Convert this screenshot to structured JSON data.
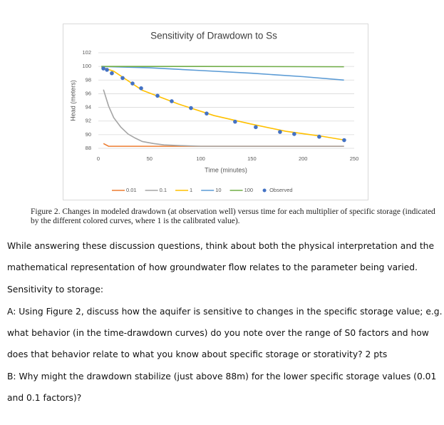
{
  "chart_data": {
    "type": "line",
    "title": "Sensitivity of Drawdown to Ss",
    "x_label": "Time (minutes)",
    "y_label": "Head (meters)",
    "xlim": [
      0,
      250
    ],
    "xticks": [
      0,
      50,
      100,
      150,
      200,
      250
    ],
    "ylim": [
      88,
      102
    ],
    "yticks": [
      88,
      90,
      92,
      94,
      96,
      98,
      100,
      102
    ],
    "grid": true,
    "series": [
      {
        "name": "0.01",
        "color": "#ed7d31",
        "x": [
          5,
          10,
          20,
          40,
          100,
          240
        ],
        "values": [
          88.7,
          88.3,
          88.3,
          88.3,
          88.3,
          88.3
        ]
      },
      {
        "name": "0.1",
        "color": "#a5a5a5",
        "x": [
          5,
          10,
          15,
          22,
          29,
          36,
          43,
          54,
          64,
          80,
          100,
          240
        ],
        "values": [
          96.6,
          94.2,
          92.5,
          91.1,
          90.1,
          89.5,
          89.0,
          88.7,
          88.5,
          88.4,
          88.3,
          88.3
        ]
      },
      {
        "name": "1",
        "color": "#ffc000",
        "x": [
          3,
          15,
          43,
          78,
          113,
          148,
          183,
          217,
          241
        ],
        "values": [
          99.9,
          99.3,
          96.5,
          94.5,
          92.8,
          91.6,
          90.5,
          89.8,
          89.2
        ]
      },
      {
        "name": "10",
        "color": "#5b9bd5",
        "x": [
          3,
          50,
          100,
          150,
          200,
          240
        ],
        "values": [
          100,
          99.8,
          99.4,
          99.0,
          98.5,
          98.0
        ]
      },
      {
        "name": "100",
        "color": "#70ad47",
        "x": [
          3,
          100,
          240
        ],
        "values": [
          100,
          100,
          99.95
        ]
      }
    ],
    "observed": {
      "name": "Observed",
      "color": "#4472c4",
      "x": [
        4.9,
        8.4,
        13.2,
        23.7,
        33.4,
        41.8,
        57.8,
        71.7,
        90.5,
        105.8,
        133.6,
        153.8,
        177.5,
        191.4,
        215.8,
        240.2
      ],
      "values": [
        99.7,
        99.5,
        99.0,
        98.3,
        97.5,
        96.8,
        95.7,
        94.9,
        93.9,
        93.1,
        91.9,
        91.1,
        90.4,
        90.1,
        89.7,
        89.2
      ]
    }
  },
  "caption": "Figure 2. Changes in modeled drawdown (at observation well) versus time for each multiplier of specific storage (indicated by the different colored curves, where 1 is the calibrated value).",
  "lines": [
    "While answering these discussion questions, think about both the physical interpretation and the",
    "mathematical representation of how groundwater flow relates to the parameter being varied.",
    "Sensitivity to storage:",
    "A: Using Figure 2, discuss how the aquifer is sensitive to changes in the specific storage value; e.g.",
    "what behavior (in the time-drawdown curves) do you note over the range of S0 factors and how",
    "does that behavior relate to what you know about specific storage or storativity? 2 pts",
    "B: Why might the drawdown stabilize (just above 88m) for the lower specific storage values (0.01",
    "and 0.1 factors)?"
  ]
}
